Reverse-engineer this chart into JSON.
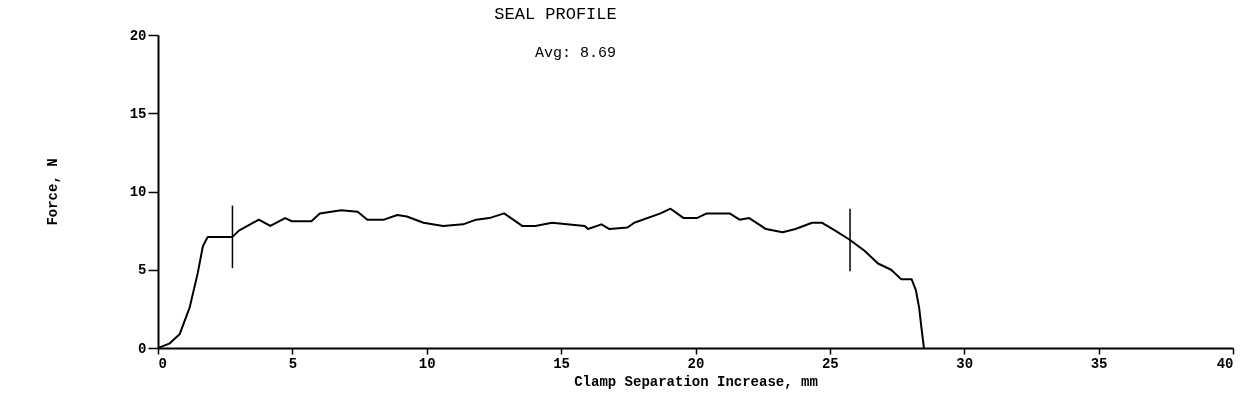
{
  "chart_data": {
    "type": "line",
    "title": "SEAL PROFILE",
    "xlabel": "Clamp Separation Increase, mm",
    "ylabel": "Force, N",
    "annotations": [
      "Avg:  8.69"
    ],
    "xlim": [
      0,
      40
    ],
    "xticks": [
      0,
      5,
      10,
      15,
      20,
      25,
      30,
      35,
      40
    ],
    "ylim": [
      0,
      20
    ],
    "yticks": [
      0,
      5,
      10,
      15,
      20
    ],
    "grid": false,
    "marker": "none",
    "line_style": "solid",
    "ref_lines": [
      {
        "axis": "x",
        "value": 2.77,
        "label": null
      },
      {
        "axis": "x",
        "value": 25.75,
        "label": null
      }
    ],
    "x": [
      0,
      0.44,
      0.81,
      1.18,
      1.48,
      1.67,
      1.85,
      2.77,
      3.01,
      3.75,
      4.18,
      4.73,
      4.98,
      5.71,
      6.02,
      6.81,
      7.43,
      7.79,
      8.41,
      8.9,
      9.26,
      9.88,
      10.61,
      11.35,
      11.84,
      12.33,
      12.88,
      13.55,
      14.04,
      14.66,
      15.88,
      16.0,
      16.5,
      16.8,
      17.47,
      17.72,
      18.7,
      19.07,
      19.56,
      20.05,
      20.42,
      21.27,
      21.64,
      22.0,
      22.62,
      23.24,
      23.72,
      24.34,
      24.71,
      25.2,
      25.75,
      26.3,
      26.79,
      27.28,
      27.65,
      28.04,
      28.2,
      28.32,
      28.4,
      28.5
    ],
    "series": [
      {
        "color": "#000000",
        "values": [
          0,
          0.3,
          0.9,
          2.6,
          4.8,
          6.5,
          7.1,
          7.1,
          7.5,
          8.2,
          7.8,
          8.3,
          8.1,
          8.1,
          8.6,
          8.8,
          8.7,
          8.2,
          8.2,
          8.5,
          8.4,
          8.0,
          7.8,
          7.9,
          8.2,
          8.3,
          8.6,
          7.8,
          7.8,
          8.0,
          7.8,
          7.6,
          7.9,
          7.6,
          7.7,
          8.0,
          8.6,
          8.9,
          8.3,
          8.3,
          8.6,
          8.6,
          8.2,
          8.3,
          7.6,
          7.4,
          7.6,
          8.0,
          8.0,
          7.5,
          6.9,
          6.2,
          5.4,
          5.0,
          4.4,
          4.4,
          3.7,
          2.6,
          1.4,
          0
        ]
      }
    ]
  }
}
